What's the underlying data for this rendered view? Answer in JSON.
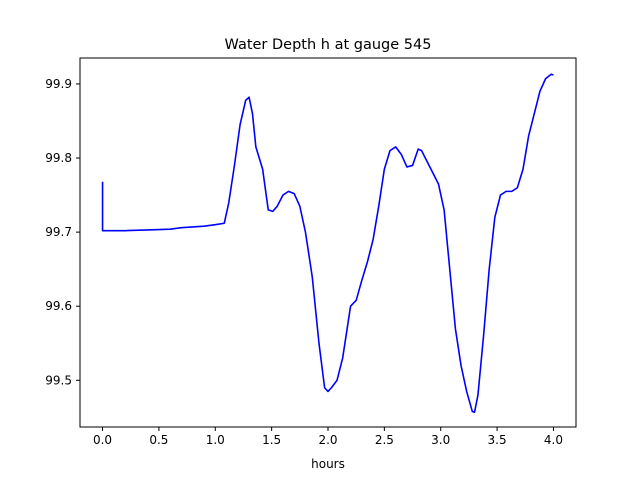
{
  "chart_data": {
    "type": "line",
    "title": "Water Depth h at gauge 545",
    "xlabel": "hours",
    "ylabel": "",
    "xlim": [
      -0.2,
      4.2
    ],
    "ylim": [
      99.437,
      99.935
    ],
    "grid": false,
    "xticks": [
      0.0,
      0.5,
      1.0,
      1.5,
      2.0,
      2.5,
      3.0,
      3.5,
      4.0
    ],
    "xtick_labels": [
      "0.0",
      "0.5",
      "1.0",
      "1.5",
      "2.0",
      "2.5",
      "3.0",
      "3.5",
      "4.0"
    ],
    "yticks": [
      99.5,
      99.6,
      99.7,
      99.8,
      99.9
    ],
    "ytick_labels": [
      "99.5",
      "99.6",
      "99.7",
      "99.8",
      "99.9"
    ],
    "series": [
      {
        "color": "#0000ff",
        "x": [
          0.0,
          0.0,
          0.05,
          0.2,
          0.4,
          0.6,
          0.7,
          0.9,
          1.0,
          1.08,
          1.12,
          1.17,
          1.22,
          1.27,
          1.3,
          1.33,
          1.36,
          1.42,
          1.47,
          1.51,
          1.55,
          1.6,
          1.65,
          1.7,
          1.75,
          1.8,
          1.86,
          1.92,
          1.97,
          2.0,
          2.03,
          2.08,
          2.13,
          2.2,
          2.25,
          2.3,
          2.35,
          2.4,
          2.45,
          2.5,
          2.55,
          2.6,
          2.65,
          2.7,
          2.75,
          2.8,
          2.83,
          2.88,
          2.93,
          2.98,
          3.03,
          3.08,
          3.13,
          3.18,
          3.23,
          3.28,
          3.3,
          3.33,
          3.38,
          3.43,
          3.48,
          3.53,
          3.58,
          3.63,
          3.68,
          3.73,
          3.78,
          3.83,
          3.88,
          3.93,
          3.98,
          4.0
        ],
        "y": [
          99.768,
          99.702,
          99.702,
          99.702,
          99.703,
          99.704,
          99.706,
          99.708,
          99.71,
          99.712,
          99.74,
          99.79,
          99.845,
          99.878,
          99.882,
          99.86,
          99.815,
          99.785,
          99.73,
          99.728,
          99.735,
          99.75,
          99.755,
          99.752,
          99.735,
          99.7,
          99.64,
          99.55,
          99.49,
          99.485,
          99.49,
          99.5,
          99.53,
          99.6,
          99.608,
          99.635,
          99.66,
          99.69,
          99.735,
          99.785,
          99.81,
          99.815,
          99.805,
          99.788,
          99.79,
          99.812,
          99.81,
          99.795,
          99.78,
          99.765,
          99.73,
          99.65,
          99.57,
          99.52,
          99.485,
          99.458,
          99.457,
          99.48,
          99.56,
          99.65,
          99.72,
          99.75,
          99.755,
          99.755,
          99.76,
          99.785,
          99.83,
          99.86,
          99.89,
          99.907,
          99.913,
          99.912
        ]
      }
    ]
  }
}
